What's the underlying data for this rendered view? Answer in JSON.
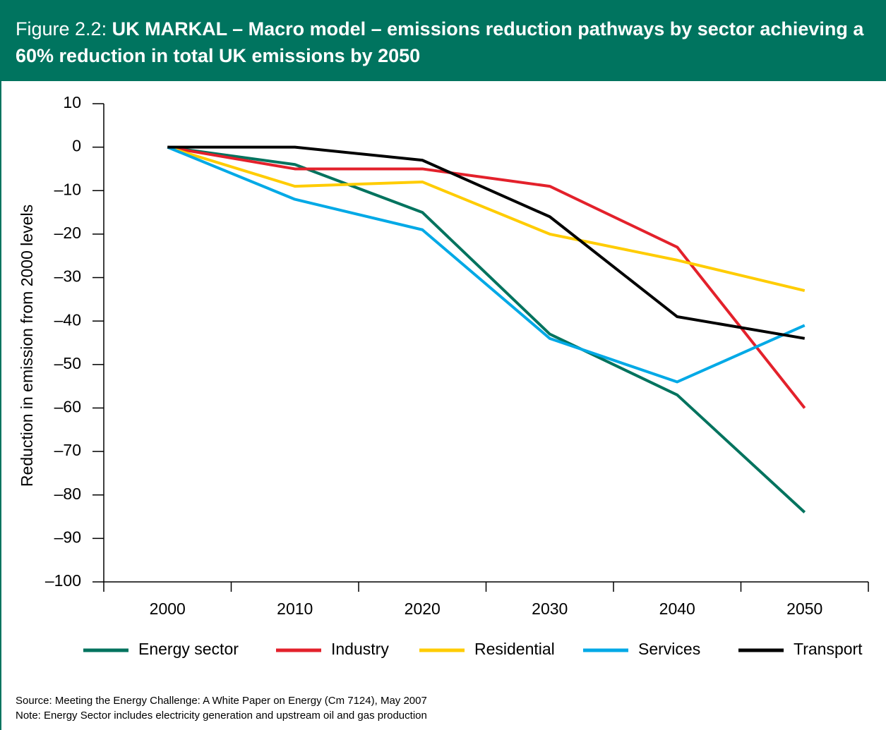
{
  "chart_data": {
    "type": "line",
    "figure_label": "Figure 2.2:",
    "title": "UK MARKAL – Macro model – emissions reduction pathways by sector achieving a 60% reduction in total UK emissions by 2050",
    "y_axis_label": "Reduction in emission from 2000 levels",
    "categories": [
      "2000",
      "2010",
      "2020",
      "2030",
      "2040",
      "2050"
    ],
    "series": [
      {
        "name": "Energy sector",
        "color": "#00735e",
        "values": [
          0,
          -4,
          -15,
          -43,
          -57,
          -84
        ]
      },
      {
        "name": "Industry",
        "color": "#e3212b",
        "values": [
          0,
          -5,
          -5,
          -9,
          -23,
          -60
        ]
      },
      {
        "name": "Residential",
        "color": "#ffcc00",
        "values": [
          0,
          -9,
          -8,
          -20,
          -26,
          -33
        ]
      },
      {
        "name": "Services",
        "color": "#00a9e6",
        "values": [
          0,
          -12,
          -19,
          -44,
          -54,
          -41
        ]
      },
      {
        "name": "Transport",
        "color": "#000000",
        "values": [
          0,
          0,
          -3,
          -16,
          -39,
          -44
        ]
      }
    ],
    "ylim": [
      -100,
      10
    ],
    "yticks": [
      {
        "value": -100,
        "label": "–100"
      },
      {
        "value": -90,
        "label": "–90"
      },
      {
        "value": -80,
        "label": "–80"
      },
      {
        "value": -70,
        "label": "–70"
      },
      {
        "value": -60,
        "label": "–60"
      },
      {
        "value": -50,
        "label": "–50"
      },
      {
        "value": -40,
        "label": "–40"
      },
      {
        "value": -30,
        "label": "–30"
      },
      {
        "value": -20,
        "label": "–20"
      },
      {
        "value": -10,
        "label": "–10"
      },
      0,
      10
    ],
    "legend": "bottom",
    "source": "Source: Meeting the Energy Challenge: A White Paper on Energy (Cm 7124), May 2007",
    "note": "Note: Energy Sector includes electricity generation and upstream oil and gas production"
  }
}
